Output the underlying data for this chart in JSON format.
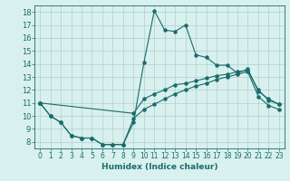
{
  "xlabel": "Humidex (Indice chaleur)",
  "xlim": [
    -0.5,
    23.5
  ],
  "ylim": [
    7.5,
    18.5
  ],
  "xticks": [
    0,
    1,
    2,
    3,
    4,
    5,
    6,
    7,
    8,
    9,
    10,
    11,
    12,
    13,
    14,
    15,
    16,
    17,
    18,
    19,
    20,
    21,
    22,
    23
  ],
  "yticks": [
    8,
    9,
    10,
    11,
    12,
    13,
    14,
    15,
    16,
    17,
    18
  ],
  "bg_color": "#d8f0ee",
  "grid_color": "#b0d0ce",
  "line_color": "#1a6b6b",
  "series1_x": [
    0,
    1,
    2,
    3,
    4,
    5,
    6,
    7,
    8,
    9,
    10,
    11,
    12,
    13,
    14,
    15,
    16,
    17,
    18,
    19,
    20,
    21,
    22,
    23
  ],
  "series1_y": [
    11.0,
    10.0,
    9.5,
    8.5,
    8.3,
    8.3,
    7.8,
    7.8,
    7.8,
    9.5,
    14.1,
    18.1,
    16.6,
    16.5,
    17.0,
    14.7,
    14.5,
    13.9,
    13.9,
    13.3,
    13.6,
    11.9,
    11.3,
    10.9
  ],
  "series2_x": [
    0,
    9,
    10,
    11,
    12,
    13,
    14,
    15,
    16,
    17,
    18,
    19,
    20,
    21,
    22,
    23
  ],
  "series2_y": [
    11.0,
    10.2,
    11.3,
    11.7,
    12.0,
    12.4,
    12.5,
    12.7,
    12.9,
    13.1,
    13.2,
    13.4,
    13.5,
    12.0,
    11.2,
    10.9
  ],
  "series3_x": [
    0,
    1,
    2,
    3,
    4,
    5,
    6,
    7,
    8,
    9,
    10,
    11,
    12,
    13,
    14,
    15,
    16,
    17,
    18,
    19,
    20,
    21,
    22,
    23
  ],
  "series3_y": [
    11.0,
    10.0,
    9.5,
    8.5,
    8.3,
    8.3,
    7.8,
    7.8,
    7.8,
    9.8,
    10.5,
    10.9,
    11.3,
    11.7,
    12.0,
    12.3,
    12.5,
    12.8,
    13.0,
    13.2,
    13.4,
    11.5,
    10.8,
    10.5
  ]
}
